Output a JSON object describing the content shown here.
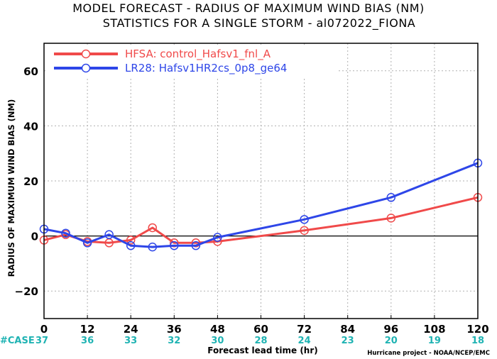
{
  "chart_data": {
    "type": "line",
    "title_line1": "MODEL FORECAST - RADIUS OF MAXIMUM WIND BIAS (NM)",
    "title_line2": "STATISTICS FOR A SINGLE STORM - al072022_FIONA",
    "xlabel": "Forecast lead time (hr)",
    "ylabel": "RADIUS OF MAXIMUM WIND BIAS (NM)",
    "xlim": [
      0,
      120
    ],
    "ylim": [
      -30,
      70
    ],
    "x_ticks": [
      0,
      12,
      24,
      36,
      48,
      60,
      72,
      84,
      96,
      108,
      120
    ],
    "y_ticks": [
      -20,
      0,
      20,
      40,
      60
    ],
    "y_tick_labels": [
      "−20",
      "0",
      "20",
      "40",
      "60"
    ],
    "grid": true,
    "legend_position": "top-left",
    "series": [
      {
        "name": "HFSA: control_Hafsv1_fnl_A",
        "color": "#f04a4a",
        "x": [
          0,
          6,
          12,
          18,
          24,
          30,
          36,
          42,
          48,
          72,
          96,
          120
        ],
        "y": [
          -1.5,
          0.5,
          -2.0,
          -2.5,
          -1.5,
          3.0,
          -2.5,
          -2.5,
          -2.0,
          2.0,
          6.5,
          14.0
        ]
      },
      {
        "name": "LR28: Hafsv1HR2cs_0p8_ge64",
        "color": "#2e46e8",
        "x": [
          0,
          6,
          12,
          18,
          24,
          30,
          36,
          42,
          48,
          72,
          96,
          120
        ],
        "y": [
          2.5,
          1.0,
          -2.5,
          0.5,
          -3.5,
          -4.0,
          -3.5,
          -3.5,
          -0.5,
          6.0,
          14.0,
          26.5
        ]
      }
    ],
    "case_label": "#CASE",
    "case_positions": [
      0,
      12,
      24,
      36,
      48,
      60,
      72,
      84,
      96,
      108,
      120
    ],
    "case_counts": [
      "37",
      "36",
      "33",
      "32",
      "30",
      "28",
      "24",
      "23",
      "20",
      "19",
      "18"
    ],
    "credit": "Hurricane project - NOAA/NCEP/EMC"
  }
}
